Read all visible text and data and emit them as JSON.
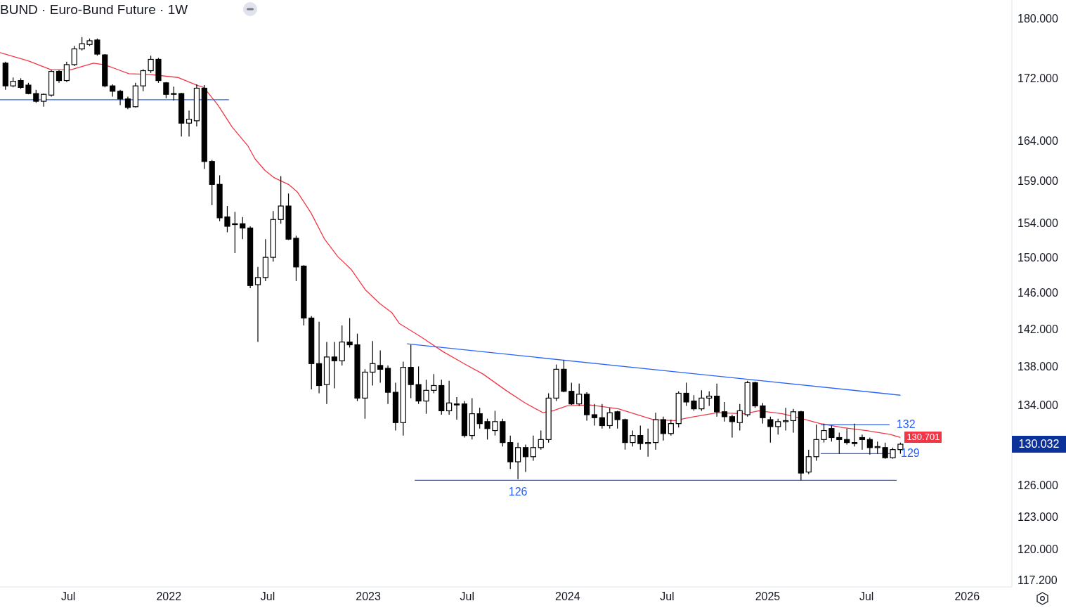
{
  "chart_data": {
    "type": "candlestick",
    "title": "BUND · Euro-Bund Future · 1W",
    "xlim": [
      "2021-02-26",
      "2026-03-24"
    ],
    "xticks": [
      {
        "value": "2021-07-01",
        "label": "Jul"
      },
      {
        "value": "2022-01-01",
        "label": "2022"
      },
      {
        "value": "2022-07-01",
        "label": "Jul"
      },
      {
        "value": "2023-01-01",
        "label": "2023"
      },
      {
        "value": "2023-07-01",
        "label": "Jul"
      },
      {
        "value": "2024-01-01",
        "label": "2024"
      },
      {
        "value": "2024-07-01",
        "label": "Jul"
      },
      {
        "value": "2025-01-01",
        "label": "2025"
      },
      {
        "value": "2025-07-01",
        "label": "Jul"
      },
      {
        "value": "2026-01-01",
        "label": "2026"
      }
    ],
    "ylim": [
      116.6,
      182.6
    ],
    "log": true,
    "yticks": [
      {
        "value": 117.2,
        "label": "117.200"
      },
      {
        "value": 120,
        "label": "120.000"
      },
      {
        "value": 123,
        "label": "123.000"
      },
      {
        "value": 126,
        "label": "126.000"
      },
      {
        "value": 134,
        "label": "134.000"
      },
      {
        "value": 138,
        "label": "138.000"
      },
      {
        "value": 142,
        "label": "142.000"
      },
      {
        "value": 146,
        "label": "146.000"
      },
      {
        "value": 150,
        "label": "150.000"
      },
      {
        "value": 154,
        "label": "154.000"
      },
      {
        "value": 159,
        "label": "159.000"
      },
      {
        "value": 164,
        "label": "164.000"
      },
      {
        "value": 172,
        "label": "172.000"
      },
      {
        "value": 180,
        "label": "180.000"
      }
    ],
    "series": [
      {
        "color": "#000000",
        "x": [
          "2021-03-08",
          "2021-03-22",
          "2021-04-05",
          "2021-04-19",
          "2021-05-03",
          "2021-05-17",
          "2021-05-31",
          "2021-06-14",
          "2021-06-28",
          "2021-07-12",
          "2021-07-26",
          "2021-08-09",
          "2021-08-23",
          "2021-09-06",
          "2021-09-20",
          "2021-10-04",
          "2021-10-18",
          "2021-11-01",
          "2021-11-15",
          "2021-11-29",
          "2021-12-13",
          "2021-12-27",
          "2022-01-10",
          "2022-01-24",
          "2022-02-07",
          "2022-02-21",
          "2022-03-07",
          "2022-03-21",
          "2022-04-04",
          "2022-04-18",
          "2022-05-02",
          "2022-05-16",
          "2022-05-30",
          "2022-06-13",
          "2022-06-27",
          "2022-07-11",
          "2022-07-25",
          "2022-08-08",
          "2022-08-22",
          "2022-09-05",
          "2022-09-19",
          "2022-10-03",
          "2022-10-17",
          "2022-10-31",
          "2022-11-14",
          "2022-11-28",
          "2022-12-12",
          "2022-12-26",
          "2023-01-09",
          "2023-01-23",
          "2023-02-06",
          "2023-02-20",
          "2023-03-06",
          "2023-03-20",
          "2023-04-03",
          "2023-04-17",
          "2023-05-01",
          "2023-05-15",
          "2023-05-29",
          "2023-06-12",
          "2023-06-26",
          "2023-07-10",
          "2023-07-24",
          "2023-08-07",
          "2023-08-21",
          "2023-09-04",
          "2023-09-18",
          "2023-10-02",
          "2023-10-16",
          "2023-10-30",
          "2023-11-13",
          "2023-11-27",
          "2023-12-11",
          "2023-12-25",
          "2024-01-08",
          "2024-01-22",
          "2024-02-05",
          "2024-02-19",
          "2024-03-04",
          "2024-03-18",
          "2024-04-01",
          "2024-04-15",
          "2024-04-29",
          "2024-05-13",
          "2024-05-27",
          "2024-06-10",
          "2024-06-24",
          "2024-07-08",
          "2024-07-22",
          "2024-08-05",
          "2024-08-19",
          "2024-09-02",
          "2024-09-16",
          "2024-09-30",
          "2024-10-14",
          "2024-10-28",
          "2024-11-11",
          "2024-11-25",
          "2024-12-09",
          "2024-12-23",
          "2025-01-06",
          "2025-01-20",
          "2025-02-03",
          "2025-02-17",
          "2025-03-03",
          "2025-03-17",
          "2025-03-31",
          "2025-04-14",
          "2025-04-28",
          "2025-05-12",
          "2025-05-26",
          "2025-06-09",
          "2025-06-23",
          "2025-07-07",
          "2025-07-21",
          "2025-08-04",
          "2025-08-18",
          "2025-09-01"
        ],
        "ohlc": [
          [
            174.0,
            174.2,
            170.5,
            171.0
          ],
          [
            171.0,
            172.1,
            170.8,
            171.6
          ],
          [
            171.7,
            172.0,
            170.6,
            170.8
          ],
          [
            171.1,
            171.4,
            169.9,
            170.0
          ],
          [
            170.0,
            170.5,
            168.8,
            169.0
          ],
          [
            169.0,
            170.0,
            168.3,
            169.9
          ],
          [
            169.8,
            173.1,
            169.6,
            172.9
          ],
          [
            172.9,
            173.1,
            171.4,
            171.7
          ],
          [
            171.7,
            174.2,
            171.5,
            173.8
          ],
          [
            173.8,
            176.3,
            173.6,
            175.9
          ],
          [
            175.9,
            177.5,
            175.7,
            176.6
          ],
          [
            176.5,
            177.3,
            176.3,
            177.0
          ],
          [
            177.1,
            177.3,
            175.0,
            175.2
          ],
          [
            175.1,
            175.2,
            170.8,
            171.0
          ],
          [
            171.0,
            171.2,
            169.6,
            170.3
          ],
          [
            170.3,
            170.5,
            168.5,
            169.3
          ],
          [
            169.3,
            169.6,
            168.0,
            168.2
          ],
          [
            168.3,
            171.4,
            168.2,
            171.0
          ],
          [
            171.0,
            173.2,
            170.3,
            173.0
          ],
          [
            173.0,
            175.0,
            172.7,
            174.5
          ],
          [
            174.5,
            174.7,
            171.4,
            171.7
          ],
          [
            171.4,
            171.5,
            169.4,
            169.9
          ],
          [
            169.9,
            170.9,
            169.1,
            170.0
          ],
          [
            170.0,
            170.1,
            164.5,
            166.2
          ],
          [
            166.2,
            167.8,
            164.5,
            166.7
          ],
          [
            166.5,
            171.2,
            165.8,
            170.7
          ],
          [
            170.7,
            171.1,
            160.5,
            161.4
          ],
          [
            161.4,
            161.6,
            156.1,
            158.6
          ],
          [
            158.6,
            159.7,
            154.2,
            154.6
          ],
          [
            154.7,
            156.0,
            152.9,
            153.6
          ],
          [
            153.8,
            155.3,
            150.5,
            153.9
          ],
          [
            153.9,
            154.7,
            152.1,
            153.4
          ],
          [
            153.4,
            153.6,
            146.5,
            146.8
          ],
          [
            146.9,
            148.9,
            140.6,
            147.7
          ],
          [
            147.7,
            152.1,
            147.3,
            150.0
          ],
          [
            150.0,
            155.4,
            149.5,
            154.4
          ],
          [
            154.4,
            159.6,
            153.9,
            156.0
          ],
          [
            156.0,
            157.5,
            152.0,
            152.1
          ],
          [
            152.2,
            152.5,
            147.3,
            148.9
          ],
          [
            149.0,
            149.1,
            142.4,
            143.2
          ],
          [
            143.2,
            143.4,
            135.6,
            138.3
          ],
          [
            138.3,
            142.8,
            135.2,
            136.0
          ],
          [
            136.1,
            140.6,
            134.1,
            139.0
          ],
          [
            139.0,
            140.6,
            135.7,
            138.6
          ],
          [
            138.6,
            142.4,
            138.1,
            140.6
          ],
          [
            140.6,
            143.2,
            140.0,
            140.3
          ],
          [
            140.3,
            141.5,
            134.4,
            134.7
          ],
          [
            134.7,
            137.7,
            132.6,
            137.4
          ],
          [
            137.4,
            140.7,
            136.0,
            138.3
          ],
          [
            138.1,
            139.7,
            136.3,
            137.7
          ],
          [
            137.8,
            138.1,
            134.1,
            135.3
          ],
          [
            135.3,
            136.3,
            131.4,
            132.2
          ],
          [
            132.2,
            138.5,
            130.9,
            137.9
          ],
          [
            137.9,
            140.3,
            134.7,
            136.1
          ],
          [
            136.1,
            138.0,
            134.1,
            134.4
          ],
          [
            134.4,
            136.6,
            133.1,
            135.5
          ],
          [
            135.5,
            137.2,
            135.2,
            136.0
          ],
          [
            136.0,
            136.6,
            133.0,
            133.4
          ],
          [
            133.4,
            136.5,
            133.0,
            134.2
          ],
          [
            134.1,
            134.8,
            132.5,
            134.0
          ],
          [
            134.1,
            134.4,
            130.7,
            130.9
          ],
          [
            130.9,
            134.7,
            130.5,
            133.1
          ],
          [
            133.1,
            133.7,
            131.6,
            132.1
          ],
          [
            132.3,
            132.6,
            130.5,
            131.6
          ],
          [
            131.4,
            133.4,
            130.9,
            132.3
          ],
          [
            132.3,
            132.6,
            129.8,
            130.2
          ],
          [
            130.2,
            130.9,
            127.6,
            128.3
          ],
          [
            128.3,
            130.2,
            126.6,
            129.7
          ],
          [
            129.7,
            130.0,
            127.3,
            128.8
          ],
          [
            128.8,
            130.9,
            128.4,
            129.7
          ],
          [
            129.7,
            131.4,
            129.5,
            130.5
          ],
          [
            130.5,
            135.2,
            130.2,
            134.7
          ],
          [
            134.7,
            138.2,
            134.4,
            137.7
          ],
          [
            137.7,
            138.7,
            135.3,
            135.4
          ],
          [
            135.4,
            136.3,
            134.0,
            134.1
          ],
          [
            134.1,
            136.2,
            133.9,
            135.1
          ],
          [
            135.1,
            135.3,
            132.4,
            133.0
          ],
          [
            133.0,
            134.1,
            131.9,
            132.7
          ],
          [
            132.7,
            134.1,
            131.6,
            131.9
          ],
          [
            131.9,
            133.7,
            131.6,
            133.2
          ],
          [
            133.3,
            133.4,
            131.6,
            132.5
          ],
          [
            132.5,
            132.6,
            129.5,
            130.2
          ],
          [
            130.2,
            131.4,
            129.8,
            130.9
          ],
          [
            130.9,
            131.9,
            129.5,
            130.1
          ],
          [
            130.1,
            131.6,
            128.8,
            130.2
          ],
          [
            130.2,
            133.2,
            129.5,
            132.5
          ],
          [
            132.5,
            132.8,
            130.4,
            131.1
          ],
          [
            131.1,
            132.5,
            130.9,
            132.1
          ],
          [
            132.1,
            135.4,
            131.7,
            135.2
          ],
          [
            135.2,
            136.3,
            133.9,
            134.3
          ],
          [
            134.4,
            135.0,
            133.4,
            133.6
          ],
          [
            133.6,
            135.5,
            133.4,
            134.7
          ],
          [
            134.7,
            135.4,
            133.9,
            134.9
          ],
          [
            134.9,
            136.2,
            132.8,
            133.3
          ],
          [
            133.3,
            134.3,
            132.3,
            132.8
          ],
          [
            132.8,
            133.0,
            130.7,
            132.3
          ],
          [
            132.2,
            134.1,
            131.4,
            133.4
          ],
          [
            133.0,
            136.5,
            132.8,
            136.3
          ],
          [
            136.3,
            136.4,
            133.7,
            133.9
          ],
          [
            133.9,
            134.2,
            132.1,
            132.7
          ],
          [
            132.5,
            132.8,
            130.2,
            131.8
          ],
          [
            131.8,
            132.6,
            131.0,
            132.3
          ],
          [
            132.3,
            133.7,
            131.4,
            132.4
          ],
          [
            132.4,
            133.6,
            131.2,
            133.3
          ],
          [
            133.3,
            133.4,
            126.5,
            127.2
          ],
          [
            127.3,
            129.5,
            127.1,
            128.8
          ],
          [
            128.8,
            132.0,
            128.4,
            130.5
          ],
          [
            130.5,
            132.1,
            130.2,
            131.4
          ],
          [
            131.6,
            131.9,
            130.3,
            130.7
          ],
          [
            130.7,
            131.2,
            129.1,
            130.5
          ],
          [
            130.5,
            131.6,
            130.0,
            130.2
          ],
          [
            130.2,
            132.1,
            129.8,
            130.1
          ],
          [
            130.7,
            131.0,
            129.5,
            130.5
          ],
          [
            130.5,
            130.7,
            129.0,
            129.7
          ],
          [
            129.7,
            130.3,
            129.1,
            129.8
          ],
          [
            129.7,
            130.2,
            128.6,
            128.7
          ],
          [
            128.7,
            129.7,
            128.6,
            129.5
          ],
          [
            129.5,
            130.2,
            129.1,
            130.032
          ]
        ],
        "value_labels": [
          null,
          null,
          null,
          null,
          null,
          null,
          null,
          null,
          null,
          null,
          null,
          null,
          null,
          null,
          null,
          null,
          null,
          null,
          null,
          null,
          null,
          null,
          null,
          null,
          null,
          null,
          null,
          null,
          null,
          null,
          null,
          null,
          null,
          null,
          null,
          null,
          null,
          null,
          null,
          null,
          null,
          null,
          null,
          null,
          null,
          null,
          null,
          null,
          null,
          null,
          null,
          null,
          null,
          null,
          null,
          null,
          null,
          null,
          null,
          null,
          null,
          null,
          null,
          null,
          null,
          null,
          null,
          null,
          null,
          null,
          null,
          null,
          null,
          null,
          null,
          null,
          null,
          null,
          null,
          null,
          null,
          null,
          null,
          null,
          null,
          null,
          null,
          null,
          null,
          null,
          null,
          null,
          null,
          null,
          null,
          null,
          null,
          null,
          null,
          null,
          null,
          null,
          null,
          null,
          null,
          null,
          null,
          null,
          null,
          null,
          null,
          null,
          null,
          null,
          null,
          null,
          null,
          "130.032"
        ]
      },
      {
        "type": "line",
        "color": "#f23645",
        "x": [
          "2021-02-26",
          "2021-04-19",
          "2021-05-31",
          "2021-07-05",
          "2021-08-16",
          "2021-09-03",
          "2021-09-20",
          "2021-10-20",
          "2021-11-27",
          "2022-01-18",
          "2022-02-21",
          "2022-03-06",
          "2022-04-01",
          "2022-04-27",
          "2022-05-26",
          "2022-06-08",
          "2022-06-26",
          "2022-07-13",
          "2022-08-08",
          "2022-08-24",
          "2022-09-18",
          "2022-10-13",
          "2022-11-06",
          "2022-12-01",
          "2022-12-27",
          "2023-01-22",
          "2023-02-13",
          "2023-02-27",
          "2023-04-09",
          "2023-05-17",
          "2023-06-25",
          "2023-07-30",
          "2023-09-10",
          "2023-10-15",
          "2023-11-17",
          "2023-12-05",
          "2023-12-31",
          "2024-02-11",
          "2024-04-03",
          "2024-06-06",
          "2024-07-15",
          "2024-08-10",
          "2024-09-30",
          "2024-11-20",
          "2024-12-16",
          "2025-01-28",
          "2025-03-12",
          "2025-04-07",
          "2025-05-19",
          "2025-07-01",
          "2025-08-14",
          "2025-09-01"
        ],
        "values": [
          175.4,
          174.3,
          173.1,
          173.1,
          174.0,
          173.8,
          173.4,
          172.6,
          172.5,
          172.1,
          171.1,
          170.8,
          168.5,
          165.7,
          163.3,
          161.7,
          160.3,
          159.4,
          158.6,
          157.7,
          155.2,
          152.1,
          150.1,
          148.6,
          146.3,
          144.8,
          143.8,
          142.6,
          141.1,
          139.6,
          138.3,
          137.2,
          135.5,
          134.2,
          133.2,
          133.4,
          133.9,
          134.0,
          133.6,
          132.5,
          132.4,
          132.7,
          133.2,
          133.1,
          133.4,
          133.1,
          132.5,
          132.1,
          131.7,
          131.4,
          131.0,
          130.701
        ],
        "value_labels": [
          null,
          null,
          null,
          null,
          null,
          null,
          null,
          null,
          null,
          null,
          null,
          null,
          null,
          null,
          null,
          null,
          null,
          null,
          null,
          null,
          null,
          null,
          null,
          null,
          null,
          null,
          null,
          null,
          null,
          null,
          null,
          null,
          null,
          null,
          null,
          null,
          null,
          null,
          null,
          null,
          null,
          null,
          null,
          null,
          null,
          null,
          null,
          null,
          null,
          null,
          null,
          "130.701"
        ]
      },
      {
        "type": "line",
        "color": "#2962ff",
        "x": [
          "2021-02-26",
          "2022-04-21"
        ],
        "values": [
          169.2,
          169.2
        ]
      },
      {
        "type": "line",
        "color": "#2962ff",
        "x": [
          "2023-03-13",
          "2025-09-01"
        ],
        "values": [
          140.4,
          135.0
        ]
      },
      {
        "type": "line",
        "color": "#2962ff",
        "x": [
          "2023-03-27",
          "2025-08-25"
        ],
        "values": [
          126.5,
          126.5
        ]
      },
      {
        "type": "line",
        "color": "#2962ff",
        "x": [
          "2025-04-08",
          "2025-08-12"
        ],
        "values": [
          132.0,
          132.0
        ]
      },
      {
        "type": "line",
        "color": "#2962ff",
        "x": [
          "2025-04-08",
          "2025-08-20"
        ],
        "values": [
          129.1,
          129.1
        ]
      }
    ],
    "annotations": [
      {
        "text": "126",
        "x": "2023-10-02",
        "y": 126.5
      },
      {
        "text": "132",
        "x": "2025-08-12",
        "y": 132.0
      },
      {
        "text": "129",
        "x": "2025-08-20",
        "y": 129.1
      }
    ]
  }
}
